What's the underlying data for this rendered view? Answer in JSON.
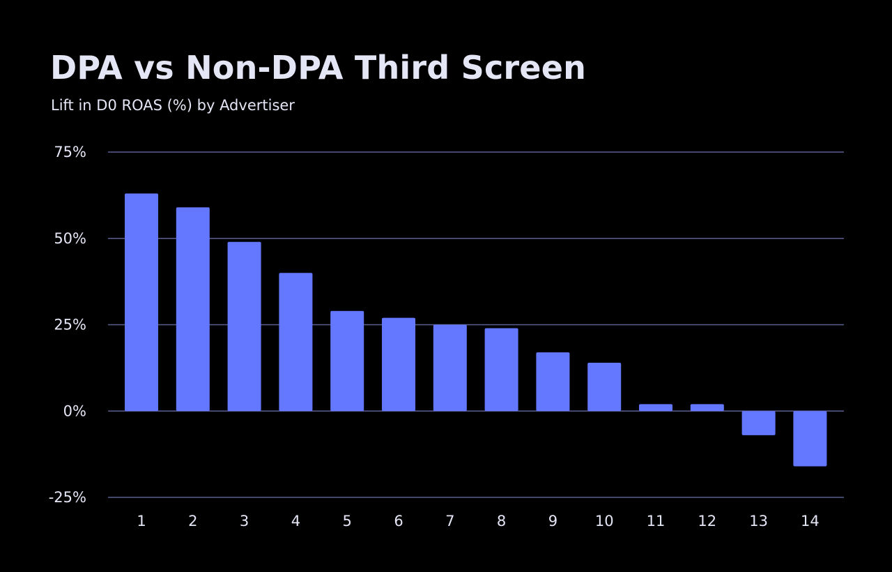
{
  "header": {
    "title": "DPA vs Non-DPA Third Screen",
    "subtitle": "Lift in D0 ROAS (%) by Advertiser"
  },
  "colors": {
    "background": "#000000",
    "bar": "#6478FF",
    "grid": "#5A5F90",
    "text": "#E4E6F6"
  },
  "chart_data": {
    "type": "bar",
    "title": "DPA vs Non-DPA Third Screen",
    "subtitle": "Lift in D0 ROAS (%) by Advertiser",
    "xlabel": "",
    "ylabel": "",
    "categories": [
      "1",
      "2",
      "3",
      "4",
      "5",
      "6",
      "7",
      "8",
      "9",
      "10",
      "11",
      "12",
      "13",
      "14"
    ],
    "values": [
      63,
      59,
      49,
      40,
      29,
      27,
      25,
      24,
      17,
      14,
      2,
      2,
      -7,
      -16
    ],
    "ylim": [
      -25,
      75
    ],
    "yticks": [
      75,
      50,
      25,
      0,
      -25
    ],
    "ytick_labels": [
      "75%",
      "50%",
      "25%",
      "0%",
      "-25%"
    ],
    "grid": true,
    "legend": "none"
  }
}
